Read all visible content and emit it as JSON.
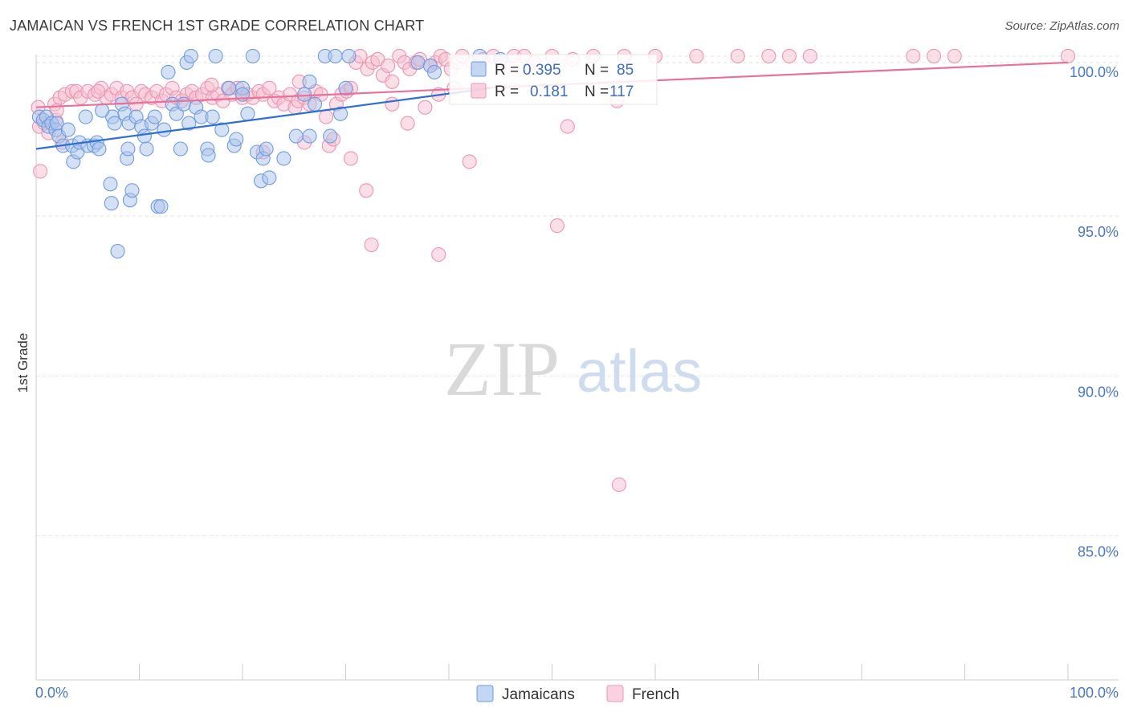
{
  "header": {
    "title": "JAMAICAN VS FRENCH 1ST GRADE CORRELATION CHART",
    "source": "Source: ZipAtlas.com"
  },
  "watermark": {
    "zip": "ZIP",
    "atlas": "atlas"
  },
  "colors": {
    "jamaican_fill": "#a9c4ec",
    "jamaican_stroke": "#6f9be0",
    "jamaican_line": "#2f6fd0",
    "french_fill": "#f6bfd0",
    "french_stroke": "#ee94b3",
    "french_line": "#e8709a",
    "axis_label": "#4a78c2",
    "grid": "#e3e3e3"
  },
  "chart_data": {
    "type": "scatter",
    "title": "JAMAICAN VS FRENCH 1ST GRADE CORRELATION CHART",
    "xlabel": "",
    "ylabel": "1st Grade",
    "xlim": [
      0,
      100
    ],
    "ylim": [
      80.5,
      100.5
    ],
    "x_tick_labels": [
      "0.0%",
      "100.0%"
    ],
    "y_ticks": [
      85,
      90,
      95,
      100
    ],
    "y_tick_labels": [
      "85.0%",
      "90.0%",
      "95.0%",
      "100.0%"
    ],
    "legend_position": "bottom-center",
    "series": [
      {
        "name": "Jamaicans",
        "R": "0.395",
        "N": "85",
        "trend": {
          "x": [
            0,
            44
          ],
          "y": [
            97.1,
            99.0
          ]
        },
        "points": [
          [
            0.3,
            98.1
          ],
          [
            0.7,
            98.0
          ],
          [
            1.0,
            98.1
          ],
          [
            1.2,
            97.8
          ],
          [
            1.5,
            97.9
          ],
          [
            1.9,
            97.7
          ],
          [
            2.0,
            97.9
          ],
          [
            2.2,
            97.5
          ],
          [
            2.6,
            97.2
          ],
          [
            3.1,
            97.7
          ],
          [
            3.5,
            97.2
          ],
          [
            3.6,
            96.7
          ],
          [
            4.0,
            97.0
          ],
          [
            4.2,
            97.3
          ],
          [
            4.8,
            98.1
          ],
          [
            5.0,
            97.2
          ],
          [
            5.6,
            97.2
          ],
          [
            5.9,
            97.3
          ],
          [
            6.1,
            97.1
          ],
          [
            7.2,
            96.0
          ],
          [
            7.3,
            95.4
          ],
          [
            7.4,
            98.1
          ],
          [
            7.6,
            97.9
          ],
          [
            7.9,
            93.9
          ],
          [
            8.3,
            98.5
          ],
          [
            8.6,
            98.2
          ],
          [
            8.8,
            96.8
          ],
          [
            8.9,
            97.1
          ],
          [
            9.1,
            95.5
          ],
          [
            9.3,
            95.8
          ],
          [
            9.0,
            97.9
          ],
          [
            9.7,
            98.1
          ],
          [
            10.2,
            97.8
          ],
          [
            10.5,
            97.5
          ],
          [
            10.7,
            97.1
          ],
          [
            11.2,
            97.9
          ],
          [
            11.5,
            98.1
          ],
          [
            11.8,
            95.3
          ],
          [
            12.1,
            95.3
          ],
          [
            12.4,
            97.7
          ],
          [
            12.8,
            99.5
          ],
          [
            13.2,
            98.5
          ],
          [
            13.6,
            98.2
          ],
          [
            14.0,
            97.1
          ],
          [
            14.3,
            98.5
          ],
          [
            14.6,
            99.8
          ],
          [
            15.0,
            100.0
          ],
          [
            15.5,
            98.4
          ],
          [
            16.0,
            98.1
          ],
          [
            16.6,
            97.1
          ],
          [
            16.7,
            96.9
          ],
          [
            17.1,
            98.1
          ],
          [
            17.4,
            100.0
          ],
          [
            18.0,
            97.7
          ],
          [
            18.7,
            99.0
          ],
          [
            19.2,
            97.2
          ],
          [
            19.4,
            97.4
          ],
          [
            20.0,
            99.0
          ],
          [
            20.5,
            98.2
          ],
          [
            21.0,
            100.0
          ],
          [
            21.4,
            97.0
          ],
          [
            21.8,
            96.1
          ],
          [
            22.0,
            96.8
          ],
          [
            22.3,
            97.1
          ],
          [
            22.6,
            96.2
          ],
          [
            24.0,
            96.8
          ],
          [
            25.2,
            97.5
          ],
          [
            26.0,
            98.8
          ],
          [
            26.5,
            97.5
          ],
          [
            27.0,
            98.5
          ],
          [
            26.5,
            99.2
          ],
          [
            28.0,
            100.0
          ],
          [
            28.5,
            97.5
          ],
          [
            29.0,
            100.0
          ],
          [
            29.5,
            98.2
          ],
          [
            30.0,
            99.0
          ],
          [
            30.3,
            100.0
          ],
          [
            37.0,
            99.8
          ],
          [
            38.2,
            99.7
          ],
          [
            38.6,
            99.5
          ],
          [
            43.0,
            100.0
          ],
          [
            45.0,
            99.9
          ],
          [
            20.0,
            98.8
          ],
          [
            14.8,
            97.9
          ],
          [
            6.4,
            98.3
          ]
        ]
      },
      {
        "name": "French",
        "R": "0.181",
        "N": "117",
        "trend": {
          "x": [
            0,
            100
          ],
          "y": [
            98.4,
            99.8
          ]
        },
        "points": [
          [
            0.2,
            98.4
          ],
          [
            0.3,
            97.8
          ],
          [
            0.4,
            96.4
          ],
          [
            0.8,
            97.9
          ],
          [
            1.2,
            97.6
          ],
          [
            1.8,
            98.5
          ],
          [
            1.9,
            98.0
          ],
          [
            2.3,
            98.7
          ],
          [
            2.8,
            98.8
          ],
          [
            3.5,
            98.9
          ],
          [
            3.9,
            98.9
          ],
          [
            4.3,
            98.7
          ],
          [
            5.0,
            98.9
          ],
          [
            5.7,
            98.8
          ],
          [
            6.3,
            99.0
          ],
          [
            6.8,
            98.7
          ],
          [
            7.3,
            98.8
          ],
          [
            7.8,
            99.0
          ],
          [
            8.3,
            98.7
          ],
          [
            8.8,
            98.9
          ],
          [
            9.3,
            98.7
          ],
          [
            9.7,
            98.5
          ],
          [
            10.2,
            98.9
          ],
          [
            10.6,
            98.8
          ],
          [
            11.2,
            98.7
          ],
          [
            11.7,
            98.9
          ],
          [
            12.2,
            98.6
          ],
          [
            12.6,
            98.8
          ],
          [
            13.2,
            99.0
          ],
          [
            13.6,
            98.7
          ],
          [
            14.1,
            98.6
          ],
          [
            14.6,
            98.8
          ],
          [
            15.1,
            98.9
          ],
          [
            15.5,
            98.7
          ],
          [
            16.1,
            98.8
          ],
          [
            16.6,
            99.0
          ],
          [
            17.1,
            98.7
          ],
          [
            17.6,
            98.8
          ],
          [
            18.1,
            98.6
          ],
          [
            18.6,
            99.0
          ],
          [
            19.0,
            98.8
          ],
          [
            19.5,
            99.0
          ],
          [
            20.0,
            98.7
          ],
          [
            20.5,
            98.8
          ],
          [
            21.0,
            98.7
          ],
          [
            21.6,
            98.9
          ],
          [
            22.0,
            98.8
          ],
          [
            22.6,
            99.0
          ],
          [
            23.1,
            98.6
          ],
          [
            23.5,
            98.7
          ],
          [
            24.0,
            98.5
          ],
          [
            24.6,
            98.8
          ],
          [
            25.1,
            98.4
          ],
          [
            25.4,
            98.6
          ],
          [
            26.0,
            98.7
          ],
          [
            26.5,
            98.5
          ],
          [
            27.1,
            98.9
          ],
          [
            27.6,
            98.8
          ],
          [
            28.1,
            98.1
          ],
          [
            28.4,
            97.2
          ],
          [
            28.8,
            97.4
          ],
          [
            29.1,
            98.5
          ],
          [
            29.6,
            98.8
          ],
          [
            30.1,
            98.9
          ],
          [
            30.5,
            99.0
          ],
          [
            31.0,
            99.8
          ],
          [
            31.4,
            100.0
          ],
          [
            32.1,
            99.6
          ],
          [
            32.6,
            99.8
          ],
          [
            33.1,
            99.9
          ],
          [
            33.6,
            99.4
          ],
          [
            34.1,
            99.7
          ],
          [
            35.2,
            100.0
          ],
          [
            35.7,
            99.8
          ],
          [
            36.2,
            99.6
          ],
          [
            36.8,
            99.8
          ],
          [
            37.2,
            99.9
          ],
          [
            38.2,
            99.7
          ],
          [
            38.7,
            99.8
          ],
          [
            39.2,
            100.0
          ],
          [
            39.7,
            99.9
          ],
          [
            40.2,
            99.6
          ],
          [
            40.8,
            99.8
          ],
          [
            41.3,
            100.0
          ],
          [
            42.3,
            99.8
          ],
          [
            43.3,
            99.9
          ],
          [
            44.3,
            100.0
          ],
          [
            45.3,
            99.8
          ],
          [
            46.3,
            100.0
          ],
          [
            47.3,
            100.0
          ],
          [
            48.3,
            99.8
          ],
          [
            50.0,
            100.0
          ],
          [
            52.0,
            99.9
          ],
          [
            54.0,
            100.0
          ],
          [
            57.0,
            100.0
          ],
          [
            60.0,
            100.0
          ],
          [
            64.0,
            100.0
          ],
          [
            68.0,
            100.0
          ],
          [
            71.0,
            100.0
          ],
          [
            73.0,
            100.0
          ],
          [
            75.0,
            100.0
          ],
          [
            85.0,
            100.0
          ],
          [
            87.0,
            100.0
          ],
          [
            89.0,
            100.0
          ],
          [
            100.0,
            100.0
          ],
          [
            22.0,
            97.0
          ],
          [
            26.0,
            97.3
          ],
          [
            30.5,
            96.8
          ],
          [
            32.0,
            95.8
          ],
          [
            32.5,
            94.1
          ],
          [
            34.5,
            98.5
          ],
          [
            36.0,
            97.9
          ],
          [
            37.7,
            98.4
          ],
          [
            39.0,
            98.8
          ],
          [
            39.0,
            93.8
          ],
          [
            42.0,
            96.7
          ],
          [
            50.5,
            94.7
          ],
          [
            51.5,
            97.8
          ],
          [
            56.3,
            98.6
          ],
          [
            56.5,
            86.6
          ],
          [
            34.5,
            99.2
          ],
          [
            40.5,
            99.0
          ],
          [
            25.5,
            99.2
          ],
          [
            17.0,
            99.1
          ],
          [
            6.0,
            98.9
          ],
          [
            2.5,
            97.3
          ],
          [
            2.0,
            98.3
          ]
        ]
      }
    ]
  }
}
